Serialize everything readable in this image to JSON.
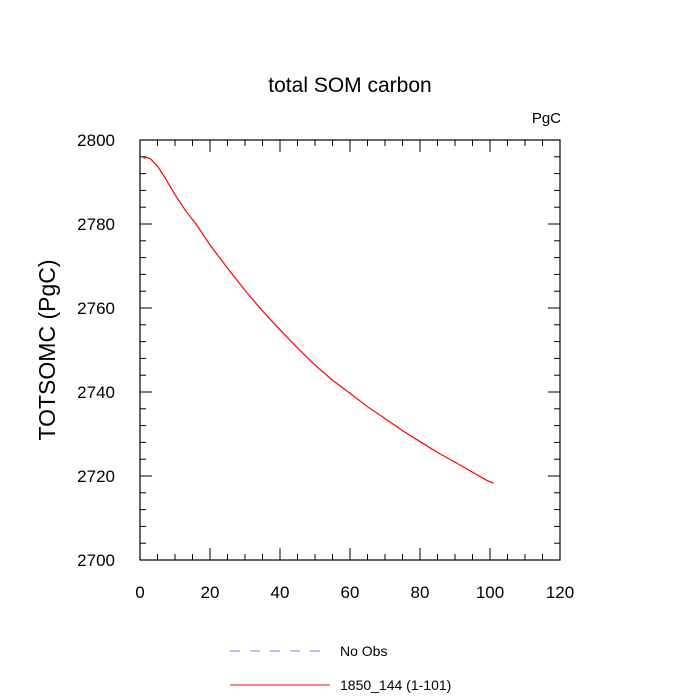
{
  "chart_data": {
    "type": "line",
    "title": "total SOM carbon",
    "units_label": "PgC",
    "ylabel": "TOTSOMC  (PgC)",
    "xlabel": "",
    "xlim": [
      0,
      120
    ],
    "ylim": [
      2700,
      2800
    ],
    "x_ticks": [
      0,
      20,
      40,
      60,
      80,
      100,
      120
    ],
    "y_ticks": [
      2700,
      2720,
      2740,
      2760,
      2780,
      2800
    ],
    "x_tick_labels": [
      "0",
      "20",
      "40",
      "60",
      "80",
      "100",
      "120"
    ],
    "y_tick_labels": [
      "2700",
      "2720",
      "2740",
      "2760",
      "2780",
      "2800"
    ],
    "x_minor_step": 5,
    "y_minor_step": 4,
    "series": [
      {
        "name": "1850_144 (1-101)",
        "color": "#ff0000",
        "dash": "solid",
        "x": [
          1,
          2,
          3,
          5,
          7,
          10,
          13,
          16,
          20,
          25,
          30,
          35,
          40,
          45,
          50,
          55,
          60,
          65,
          70,
          75,
          80,
          85,
          90,
          95,
          99,
          101
        ],
        "y": [
          2795.6,
          2795.9,
          2795.5,
          2793.8,
          2791.2,
          2787.0,
          2783.2,
          2780.0,
          2775.0,
          2769.5,
          2764.2,
          2759.3,
          2754.8,
          2750.5,
          2746.4,
          2742.8,
          2739.7,
          2736.5,
          2733.7,
          2730.8,
          2728.2,
          2725.6,
          2723.3,
          2720.9,
          2719.0,
          2718.3
        ]
      },
      {
        "name": "No Obs",
        "color": "#8080ff",
        "dash": "dashed",
        "x": [],
        "y": []
      }
    ],
    "legend": [
      {
        "label": "No Obs",
        "color": "#8080ff",
        "dash": "dashed"
      },
      {
        "label": "1850_144 (1-101)",
        "color": "#ff0000",
        "dash": "solid"
      }
    ],
    "legend_position": "bottom-center"
  }
}
